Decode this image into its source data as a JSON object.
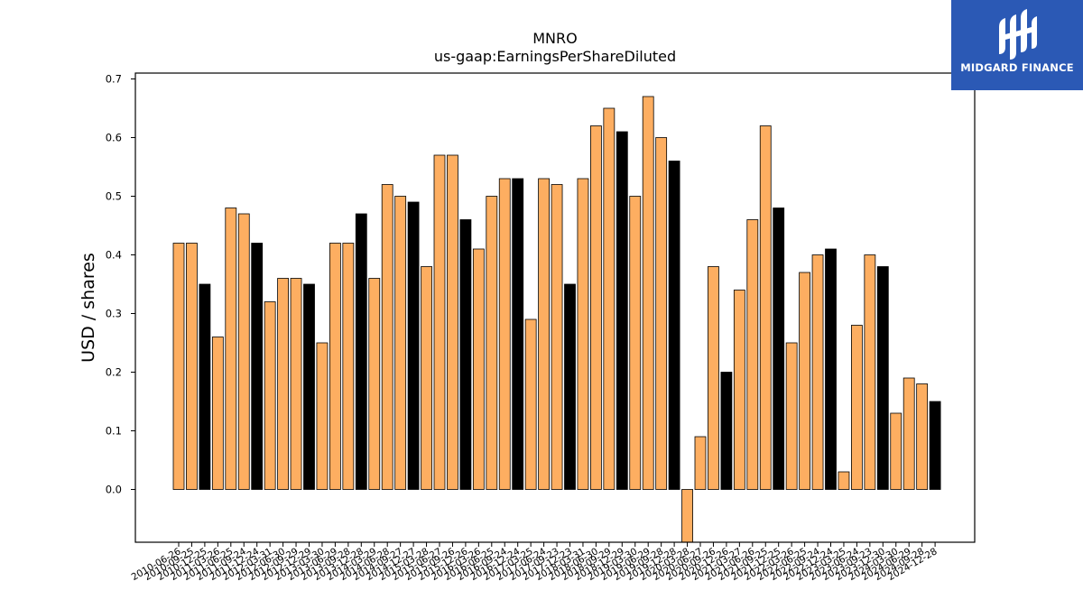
{
  "logo": {
    "text": "MIDGARD FINANCE",
    "icon": "midgard-m-logo-icon",
    "background": "#2b59b5"
  },
  "colors": {
    "bar_default": "#fdae61",
    "bar_highlight": "#000000",
    "edge": "#000000"
  },
  "chart_data": {
    "type": "bar",
    "title": "MNRO",
    "subtitle": "us-gaap:EarningsPerShareDiluted",
    "xlabel": "",
    "ylabel": "USD / shares",
    "ylim": [
      -0.09,
      0.71
    ],
    "yticks": [
      0.0,
      0.1,
      0.2,
      0.3,
      0.4,
      0.5,
      0.6,
      0.7
    ],
    "grid": false,
    "legend": "none",
    "categories": [
      "2010-06-26",
      "2010-09-25",
      "2010-12-25",
      "2011-03-26",
      "2011-06-25",
      "2011-09-24",
      "2011-12-24",
      "2012-03-31",
      "2012-06-30",
      "2012-09-29",
      "2012-12-29",
      "2013-03-30",
      "2013-06-29",
      "2013-09-28",
      "2013-12-28",
      "2014-03-29",
      "2014-06-28",
      "2014-09-27",
      "2014-12-27",
      "2015-03-28",
      "2015-06-27",
      "2015-09-26",
      "2015-12-26",
      "2016-03-26",
      "2016-06-25",
      "2016-09-24",
      "2016-12-24",
      "2017-03-25",
      "2017-06-24",
      "2017-09-23",
      "2017-12-23",
      "2018-03-31",
      "2018-06-30",
      "2018-09-29",
      "2018-12-29",
      "2019-03-30",
      "2019-06-29",
      "2019-09-28",
      "2019-12-28",
      "2020-03-28",
      "2020-06-27",
      "2020-09-26",
      "2020-12-26",
      "2021-03-27",
      "2021-06-26",
      "2021-09-25",
      "2021-12-25",
      "2022-03-26",
      "2022-06-25",
      "2022-09-24",
      "2022-12-24",
      "2023-03-25",
      "2023-06-24",
      "2023-09-23",
      "2023-12-30",
      "2024-03-30",
      "2024-06-29",
      "2024-09-28",
      "2024-12-28"
    ],
    "values": [
      0.42,
      0.42,
      0.35,
      0.26,
      0.48,
      0.47,
      0.42,
      0.32,
      0.36,
      0.36,
      0.35,
      0.25,
      0.42,
      0.42,
      0.47,
      0.36,
      0.52,
      0.5,
      0.49,
      0.38,
      0.57,
      0.57,
      0.46,
      0.41,
      0.5,
      0.53,
      0.53,
      0.29,
      0.53,
      0.52,
      0.35,
      0.53,
      0.62,
      0.65,
      0.61,
      0.5,
      0.67,
      0.6,
      0.56,
      -0.09,
      0.09,
      0.38,
      0.2,
      0.34,
      0.46,
      0.62,
      0.48,
      0.25,
      0.37,
      0.4,
      0.41,
      0.03,
      0.28,
      0.4,
      0.38,
      0.13,
      0.19,
      0.18,
      0.15
    ],
    "highlight": [
      false,
      false,
      true,
      false,
      false,
      false,
      true,
      false,
      false,
      false,
      true,
      false,
      false,
      false,
      true,
      false,
      false,
      false,
      true,
      false,
      false,
      false,
      true,
      false,
      false,
      false,
      true,
      false,
      false,
      false,
      true,
      false,
      false,
      false,
      true,
      false,
      false,
      false,
      true,
      false,
      false,
      false,
      true,
      false,
      false,
      false,
      true,
      false,
      false,
      false,
      true,
      false,
      false,
      false,
      true,
      false,
      false,
      false,
      true
    ]
  }
}
